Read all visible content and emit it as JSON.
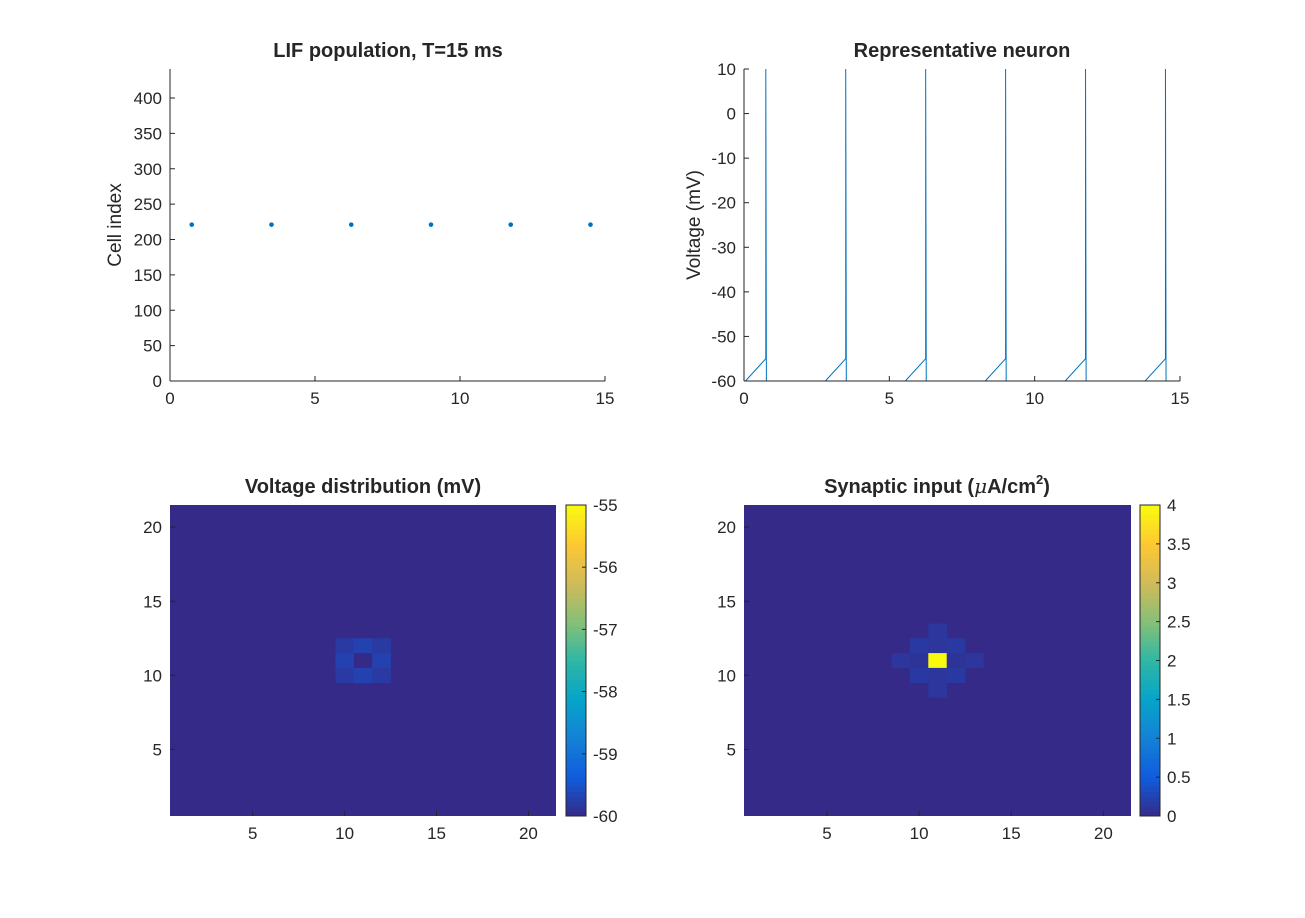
{
  "colors": {
    "line": "#0072BD",
    "axis": "#262626",
    "colormap": [
      "#352A87",
      "#0F5CDD",
      "#1481D6",
      "#06A4CA",
      "#2EB7A4",
      "#87BF77",
      "#D1BB59",
      "#FEC832",
      "#F9FB0E"
    ]
  },
  "chart_data": [
    {
      "type": "scatter",
      "title": "LIF population, T=15 ms",
      "xlabel": "",
      "ylabel": "Cell index",
      "xlim": [
        0,
        15
      ],
      "ylim": [
        0,
        441
      ],
      "xticks": [
        "0",
        "5",
        "10",
        "15"
      ],
      "yticks": [
        "0",
        "50",
        "100",
        "150",
        "200",
        "250",
        "300",
        "350",
        "400"
      ],
      "x": [
        0.75,
        3.5,
        6.25,
        9.0,
        11.75,
        14.5
      ],
      "y": [
        221,
        221,
        221,
        221,
        221,
        221
      ]
    },
    {
      "type": "line",
      "title": "Representative neuron",
      "xlabel": "",
      "ylabel": "Voltage (mV)",
      "xlim": [
        0,
        15
      ],
      "ylim": [
        -60,
        10
      ],
      "xticks": [
        "0",
        "5",
        "10",
        "15"
      ],
      "yticks": [
        "-60",
        "-50",
        "-40",
        "-30",
        "-20",
        "-10",
        "0",
        "10"
      ],
      "spike_times": [
        0.75,
        3.5,
        6.25,
        9.0,
        11.75,
        14.5
      ],
      "threshold": -55,
      "rest": -60,
      "peak": 10,
      "rise_duration": 0.7
    },
    {
      "type": "heatmap",
      "title": "Voltage distribution (mV)",
      "xlim": [
        0.5,
        21.5
      ],
      "ylim": [
        0.5,
        21.5
      ],
      "xticks": [
        "5",
        "10",
        "15",
        "20"
      ],
      "yticks": [
        "5",
        "10",
        "15",
        "20"
      ],
      "clim": [
        -60,
        -55
      ],
      "colorbar_ticks": [
        "-55",
        "-56",
        "-57",
        "-58",
        "-59",
        "-60"
      ],
      "background": -60,
      "cells": [
        {
          "x": 10,
          "y": 12,
          "v": -59.8
        },
        {
          "x": 11,
          "y": 12,
          "v": -59.7
        },
        {
          "x": 12,
          "y": 12,
          "v": -59.8
        },
        {
          "x": 10,
          "y": 11,
          "v": -59.7
        },
        {
          "x": 11,
          "y": 11,
          "v": -60
        },
        {
          "x": 12,
          "y": 11,
          "v": -59.7
        },
        {
          "x": 10,
          "y": 10,
          "v": -59.8
        },
        {
          "x": 11,
          "y": 10,
          "v": -59.7
        },
        {
          "x": 12,
          "y": 10,
          "v": -59.8
        }
      ]
    },
    {
      "type": "heatmap",
      "title_main": "Synaptic input (",
      "title_mu": "μ",
      "title_unit": "A/cm",
      "title_sup": "2",
      "title_end": ")",
      "xlim": [
        0.5,
        21.5
      ],
      "ylim": [
        0.5,
        21.5
      ],
      "xticks": [
        "5",
        "10",
        "15",
        "20"
      ],
      "yticks": [
        "5",
        "10",
        "15",
        "20"
      ],
      "clim": [
        0,
        4
      ],
      "colorbar_ticks": [
        "4",
        "3.5",
        "3",
        "2.5",
        "2",
        "1.5",
        "1",
        "0.5",
        "0"
      ],
      "background": 0,
      "cells": [
        {
          "x": 11,
          "y": 13,
          "v": 0.12
        },
        {
          "x": 10,
          "y": 12,
          "v": 0.15
        },
        {
          "x": 11,
          "y": 12,
          "v": 0.12
        },
        {
          "x": 12,
          "y": 12,
          "v": 0.15
        },
        {
          "x": 9,
          "y": 11,
          "v": 0.12
        },
        {
          "x": 10,
          "y": 11,
          "v": 0.1
        },
        {
          "x": 11,
          "y": 11,
          "v": 4
        },
        {
          "x": 12,
          "y": 11,
          "v": 0.1
        },
        {
          "x": 13,
          "y": 11,
          "v": 0.12
        },
        {
          "x": 10,
          "y": 10,
          "v": 0.15
        },
        {
          "x": 11,
          "y": 10,
          "v": 0.12
        },
        {
          "x": 12,
          "y": 10,
          "v": 0.15
        },
        {
          "x": 11,
          "y": 9,
          "v": 0.12
        }
      ]
    }
  ]
}
